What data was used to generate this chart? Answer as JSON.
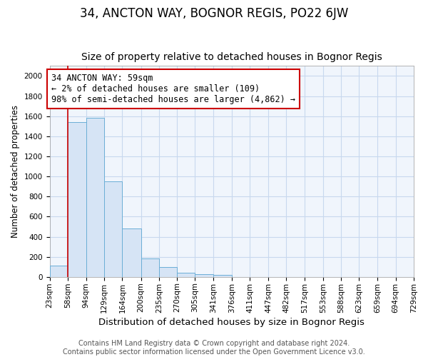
{
  "title": "34, ANCTON WAY, BOGNOR REGIS, PO22 6JW",
  "subtitle": "Size of property relative to detached houses in Bognor Regis",
  "xlabel": "Distribution of detached houses by size in Bognor Regis",
  "ylabel": "Number of detached properties",
  "categories": [
    "23sqm",
    "58sqm",
    "94sqm",
    "129sqm",
    "164sqm",
    "200sqm",
    "235sqm",
    "270sqm",
    "305sqm",
    "341sqm",
    "376sqm",
    "411sqm",
    "447sqm",
    "482sqm",
    "517sqm",
    "553sqm",
    "588sqm",
    "623sqm",
    "659sqm",
    "694sqm",
    "729sqm"
  ],
  "bar_edges": [
    23,
    58,
    94,
    129,
    164,
    200,
    235,
    270,
    305,
    341,
    376,
    411,
    447,
    482,
    517,
    553,
    588,
    623,
    659,
    694,
    729
  ],
  "bar_heights": [
    110,
    1540,
    1580,
    950,
    480,
    180,
    100,
    40,
    25,
    20,
    0,
    0,
    0,
    0,
    0,
    0,
    0,
    0,
    0,
    0
  ],
  "bar_color": "#d6e4f5",
  "bar_edge_color": "#6baed6",
  "plot_bg_color": "#f0f5fc",
  "fig_bg_color": "#ffffff",
  "grid_color": "#c8d8ee",
  "red_line_x": 58,
  "annotation_text": "34 ANCTON WAY: 59sqm\n← 2% of detached houses are smaller (109)\n98% of semi-detached houses are larger (4,862) →",
  "annotation_box_color": "#ffffff",
  "annotation_box_edge": "#cc0000",
  "ylim": [
    0,
    2100
  ],
  "yticks": [
    0,
    200,
    400,
    600,
    800,
    1000,
    1200,
    1400,
    1600,
    1800,
    2000
  ],
  "footnote": "Contains HM Land Registry data © Crown copyright and database right 2024.\nContains public sector information licensed under the Open Government Licence v3.0.",
  "title_fontsize": 12,
  "subtitle_fontsize": 10,
  "xlabel_fontsize": 9.5,
  "ylabel_fontsize": 8.5,
  "tick_fontsize": 7.5,
  "annot_fontsize": 8.5,
  "footnote_fontsize": 7
}
